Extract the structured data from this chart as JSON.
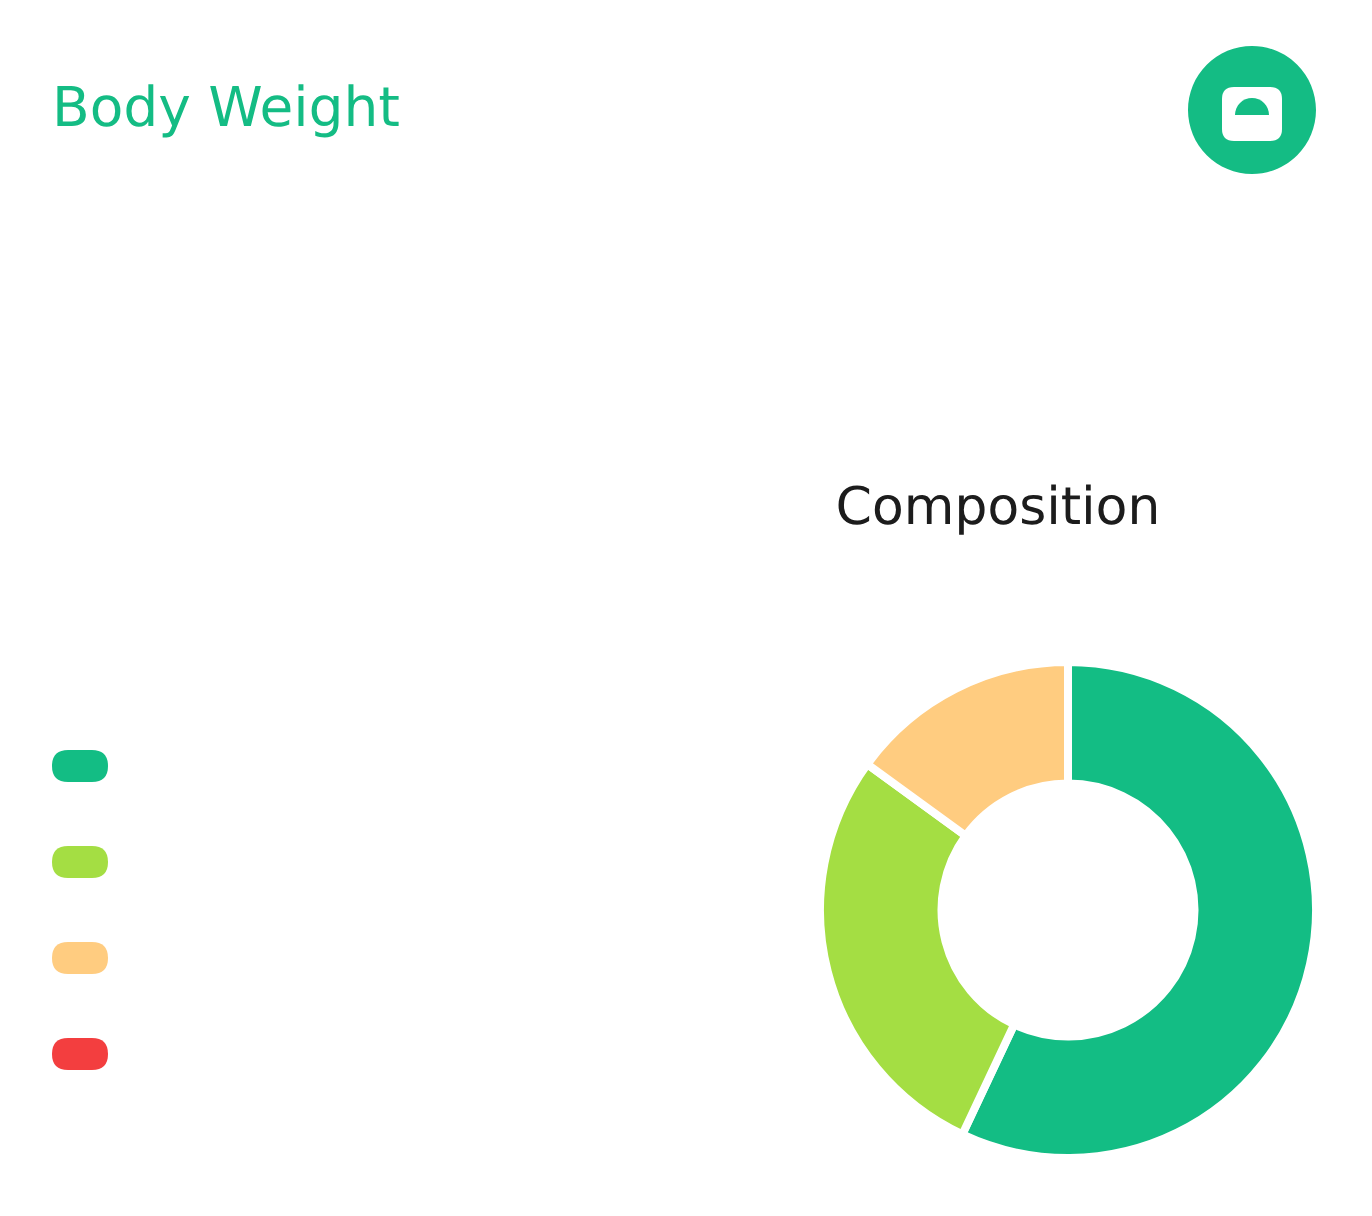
{
  "chart_data": {
    "type": "donut",
    "title": "Body Weight",
    "subtitle": "Composition",
    "categories": [
      null,
      null,
      null,
      null
    ],
    "values": [
      57,
      28,
      15,
      0
    ],
    "colors": [
      "#13bd84",
      "#a4de43",
      "#ffcc80",
      "#f33e3f"
    ]
  }
}
